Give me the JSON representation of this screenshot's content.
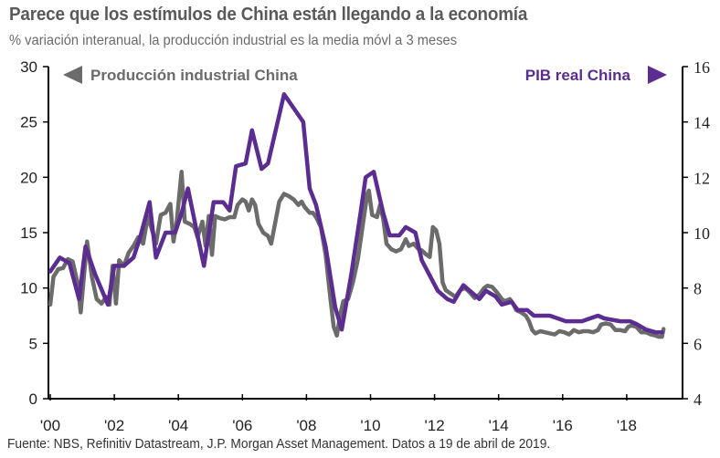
{
  "chart_data": {
    "type": "line",
    "title": "Parece que los estímulos de China están llegando a la economía",
    "subtitle": "% variación interanual, la producción industrial es la media móvl a 3 meses",
    "source": "Fuente: NBS, Refinitiv Datastream, J.P. Morgan Asset Management. Datos a 19 de abril de 2019.",
    "colors": {
      "industrial": "#6b6b6b",
      "gdp": "#5b2d90",
      "axis": "#000000"
    },
    "x_axis": {
      "range": [
        2000,
        2019.6
      ],
      "ticks": [
        2000,
        2002,
        2004,
        2006,
        2008,
        2010,
        2012,
        2014,
        2016,
        2018
      ],
      "tick_labels": [
        "'00",
        "'02",
        "'04",
        "'06",
        "'08",
        "'10",
        "'12",
        "'14",
        "'16",
        "'18"
      ]
    },
    "y_left": {
      "range": [
        0,
        30
      ],
      "ticks": [
        0,
        5,
        10,
        15,
        20,
        25,
        30
      ],
      "tick_labels": [
        "0",
        "5",
        "10",
        "15",
        "20",
        "25",
        "30"
      ]
    },
    "y_right": {
      "range": [
        4,
        16
      ],
      "ticks": [
        4,
        6,
        8,
        10,
        12,
        14,
        16
      ],
      "tick_labels": [
        "4",
        "6",
        "8",
        "10",
        "12",
        "14",
        "16"
      ]
    },
    "series": [
      {
        "name": "Producción industrial China",
        "axis": "left",
        "legend_arrow": "left",
        "points": [
          [
            2000.0,
            8.5
          ],
          [
            2000.1,
            11.0
          ],
          [
            2000.25,
            11.7
          ],
          [
            2000.4,
            11.8
          ],
          [
            2000.55,
            12.6
          ],
          [
            2000.7,
            12.4
          ],
          [
            2000.85,
            10.5
          ],
          [
            2000.95,
            7.8
          ],
          [
            2001.05,
            11.0
          ],
          [
            2001.15,
            14.2
          ],
          [
            2001.3,
            11.0
          ],
          [
            2001.45,
            9.0
          ],
          [
            2001.6,
            8.6
          ],
          [
            2001.75,
            9.2
          ],
          [
            2001.85,
            8.5
          ],
          [
            2001.95,
            12.0
          ],
          [
            2002.05,
            8.6
          ],
          [
            2002.15,
            12.5
          ],
          [
            2002.3,
            12.0
          ],
          [
            2002.45,
            13.2
          ],
          [
            2002.6,
            13.8
          ],
          [
            2002.75,
            14.6
          ],
          [
            2002.9,
            14.0
          ],
          [
            2003.05,
            16.5
          ],
          [
            2003.15,
            15.5
          ],
          [
            2003.3,
            14.0
          ],
          [
            2003.45,
            16.6
          ],
          [
            2003.6,
            16.8
          ],
          [
            2003.75,
            17.6
          ],
          [
            2003.85,
            14.2
          ],
          [
            2003.95,
            16.0
          ],
          [
            2004.1,
            20.5
          ],
          [
            2004.2,
            16.0
          ],
          [
            2004.35,
            15.8
          ],
          [
            2004.5,
            15.5
          ],
          [
            2004.6,
            14.6
          ],
          [
            2004.75,
            16.0
          ],
          [
            2004.85,
            13.8
          ],
          [
            2004.95,
            16.5
          ],
          [
            2005.05,
            13.0
          ],
          [
            2005.15,
            16.5
          ],
          [
            2005.3,
            16.3
          ],
          [
            2005.45,
            16.2
          ],
          [
            2005.6,
            16.4
          ],
          [
            2005.75,
            16.4
          ],
          [
            2005.85,
            17.5
          ],
          [
            2006.0,
            18.0
          ],
          [
            2006.1,
            17.8
          ],
          [
            2006.2,
            17.0
          ],
          [
            2006.3,
            18.0
          ],
          [
            2006.4,
            17.5
          ],
          [
            2006.5,
            15.8
          ],
          [
            2006.65,
            15.0
          ],
          [
            2006.8,
            14.7
          ],
          [
            2006.9,
            14.0
          ],
          [
            2007.0,
            15.5
          ],
          [
            2007.15,
            17.8
          ],
          [
            2007.3,
            18.5
          ],
          [
            2007.45,
            18.3
          ],
          [
            2007.6,
            18.0
          ],
          [
            2007.75,
            17.5
          ],
          [
            2007.85,
            17.8
          ],
          [
            2007.95,
            17.3
          ],
          [
            2008.1,
            16.8
          ],
          [
            2008.2,
            16.8
          ],
          [
            2008.3,
            16.4
          ],
          [
            2008.45,
            15.5
          ],
          [
            2008.6,
            13.0
          ],
          [
            2008.75,
            9.0
          ],
          [
            2008.85,
            6.5
          ],
          [
            2008.95,
            5.7
          ],
          [
            2009.05,
            7.5
          ],
          [
            2009.15,
            8.8
          ],
          [
            2009.3,
            9.0
          ],
          [
            2009.45,
            10.5
          ],
          [
            2009.6,
            12.5
          ],
          [
            2009.75,
            15.5
          ],
          [
            2009.9,
            18.5
          ],
          [
            2009.95,
            18.8
          ],
          [
            2010.05,
            16.6
          ],
          [
            2010.2,
            16.4
          ],
          [
            2010.3,
            17.5
          ],
          [
            2010.4,
            16.2
          ],
          [
            2010.5,
            14.0
          ],
          [
            2010.65,
            13.5
          ],
          [
            2010.8,
            13.3
          ],
          [
            2010.95,
            13.5
          ],
          [
            2011.1,
            14.4
          ],
          [
            2011.2,
            13.8
          ],
          [
            2011.35,
            14.0
          ],
          [
            2011.5,
            13.5
          ],
          [
            2011.6,
            13.4
          ],
          [
            2011.75,
            13.0
          ],
          [
            2011.85,
            12.8
          ],
          [
            2011.95,
            15.5
          ],
          [
            2012.05,
            15.2
          ],
          [
            2012.15,
            14.0
          ],
          [
            2012.25,
            10.5
          ],
          [
            2012.35,
            9.8
          ],
          [
            2012.5,
            9.5
          ],
          [
            2012.65,
            9.2
          ],
          [
            2012.8,
            9.8
          ],
          [
            2012.95,
            10.0
          ],
          [
            2013.1,
            9.6
          ],
          [
            2013.25,
            9.1
          ],
          [
            2013.4,
            9.4
          ],
          [
            2013.55,
            10.0
          ],
          [
            2013.65,
            10.2
          ],
          [
            2013.8,
            10.1
          ],
          [
            2013.95,
            9.6
          ],
          [
            2014.1,
            9.0
          ],
          [
            2014.2,
            8.8
          ],
          [
            2014.35,
            9.0
          ],
          [
            2014.45,
            8.6
          ],
          [
            2014.55,
            8.0
          ],
          [
            2014.7,
            7.8
          ],
          [
            2014.85,
            7.5
          ],
          [
            2014.95,
            7.0
          ],
          [
            2015.05,
            6.2
          ],
          [
            2015.15,
            5.9
          ],
          [
            2015.3,
            6.1
          ],
          [
            2015.45,
            6.0
          ],
          [
            2015.6,
            5.9
          ],
          [
            2015.75,
            5.8
          ],
          [
            2015.9,
            6.1
          ],
          [
            2016.05,
            6.0
          ],
          [
            2016.2,
            5.8
          ],
          [
            2016.35,
            6.2
          ],
          [
            2016.5,
            6.0
          ],
          [
            2016.65,
            6.1
          ],
          [
            2016.8,
            6.1
          ],
          [
            2016.95,
            6.0
          ],
          [
            2017.1,
            6.2
          ],
          [
            2017.2,
            6.7
          ],
          [
            2017.35,
            6.8
          ],
          [
            2017.5,
            6.7
          ],
          [
            2017.65,
            6.2
          ],
          [
            2017.8,
            6.2
          ],
          [
            2017.95,
            6.1
          ],
          [
            2018.05,
            6.5
          ],
          [
            2018.15,
            6.6
          ],
          [
            2018.3,
            6.5
          ],
          [
            2018.45,
            6.0
          ],
          [
            2018.6,
            6.0
          ],
          [
            2018.75,
            5.8
          ],
          [
            2018.9,
            5.7
          ],
          [
            2019.0,
            5.6
          ],
          [
            2019.1,
            5.6
          ],
          [
            2019.15,
            6.3
          ]
        ]
      },
      {
        "name": "PIB real China",
        "axis": "right",
        "legend_arrow": "right",
        "points": [
          [
            2000.0,
            8.6
          ],
          [
            2000.3,
            9.1
          ],
          [
            2000.6,
            8.9
          ],
          [
            2000.9,
            7.6
          ],
          [
            2001.1,
            9.5
          ],
          [
            2001.4,
            8.5
          ],
          [
            2001.8,
            7.4
          ],
          [
            2002.0,
            8.8
          ],
          [
            2002.3,
            8.8
          ],
          [
            2002.6,
            9.1
          ],
          [
            2002.8,
            9.8
          ],
          [
            2003.1,
            11.1
          ],
          [
            2003.3,
            9.1
          ],
          [
            2003.6,
            10.0
          ],
          [
            2003.9,
            10.0
          ],
          [
            2004.1,
            10.7
          ],
          [
            2004.3,
            11.6
          ],
          [
            2004.6,
            9.9
          ],
          [
            2004.8,
            8.8
          ],
          [
            2005.1,
            11.1
          ],
          [
            2005.4,
            11.1
          ],
          [
            2005.6,
            10.8
          ],
          [
            2005.8,
            12.4
          ],
          [
            2006.1,
            12.5
          ],
          [
            2006.3,
            13.7
          ],
          [
            2006.6,
            12.3
          ],
          [
            2006.8,
            12.5
          ],
          [
            2007.3,
            15.0
          ],
          [
            2007.6,
            14.5
          ],
          [
            2007.9,
            14.0
          ],
          [
            2008.1,
            11.6
          ],
          [
            2008.3,
            11.0
          ],
          [
            2008.6,
            9.5
          ],
          [
            2008.9,
            7.3
          ],
          [
            2009.1,
            6.5
          ],
          [
            2009.4,
            8.5
          ],
          [
            2009.7,
            10.8
          ],
          [
            2009.85,
            12.0
          ],
          [
            2010.1,
            12.2
          ],
          [
            2010.4,
            10.7
          ],
          [
            2010.6,
            9.9
          ],
          [
            2010.9,
            9.9
          ],
          [
            2011.1,
            10.2
          ],
          [
            2011.4,
            10.0
          ],
          [
            2011.6,
            9.0
          ],
          [
            2012.1,
            7.9
          ],
          [
            2012.4,
            7.6
          ],
          [
            2012.6,
            7.5
          ],
          [
            2012.9,
            8.1
          ],
          [
            2013.1,
            7.9
          ],
          [
            2013.4,
            7.6
          ],
          [
            2013.6,
            7.9
          ],
          [
            2013.9,
            7.7
          ],
          [
            2014.1,
            7.4
          ],
          [
            2014.4,
            7.5
          ],
          [
            2014.6,
            7.2
          ],
          [
            2014.9,
            7.2
          ],
          [
            2015.1,
            7.0
          ],
          [
            2015.6,
            7.0
          ],
          [
            2016.1,
            6.8
          ],
          [
            2016.6,
            6.8
          ],
          [
            2017.1,
            7.0
          ],
          [
            2017.3,
            6.9
          ],
          [
            2017.8,
            6.8
          ],
          [
            2018.1,
            6.8
          ],
          [
            2018.3,
            6.7
          ],
          [
            2018.6,
            6.5
          ],
          [
            2018.9,
            6.4
          ],
          [
            2019.1,
            6.4
          ]
        ]
      }
    ]
  }
}
